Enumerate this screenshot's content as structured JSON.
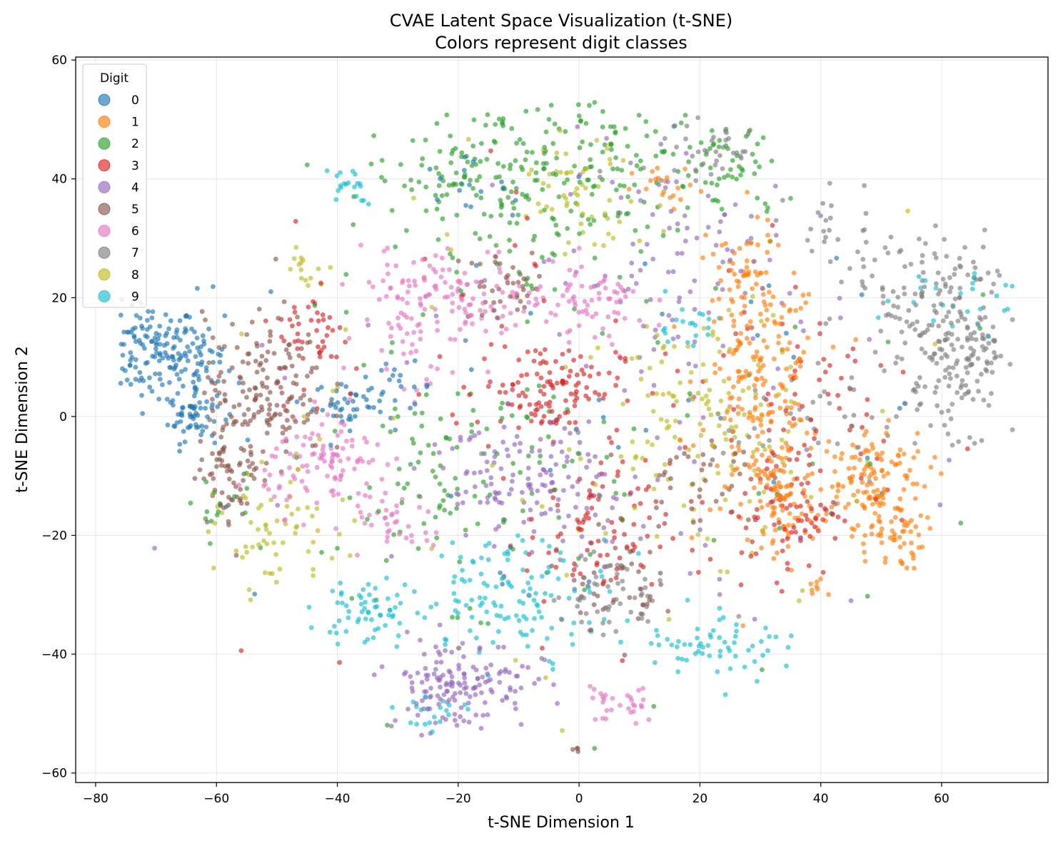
{
  "chart_data": {
    "type": "scatter",
    "title": "CVAE Latent Space Visualization (t-SNE)",
    "subtitle": "Colors represent digit classes",
    "xlabel": "t-SNE Dimension 1",
    "ylabel": "t-SNE Dimension 2",
    "xlim": [
      -83.3,
      77.6
    ],
    "ylim": [
      -61.6,
      60.5
    ],
    "xticks": [
      -80,
      -60,
      -40,
      -20,
      0,
      20,
      40,
      60
    ],
    "yticks": [
      -60,
      -40,
      -20,
      0,
      20,
      40,
      60
    ],
    "xtick_labels": [
      "−80",
      "−60",
      "−40",
      "−20",
      "0",
      "20",
      "40",
      "60"
    ],
    "ytick_labels": [
      "−60",
      "−40",
      "−20",
      "0",
      "20",
      "40",
      "60"
    ],
    "grid": true,
    "legend": {
      "title": "Digit",
      "placement": "top-left",
      "entries": [
        "0",
        "1",
        "2",
        "3",
        "4",
        "5",
        "6",
        "7",
        "8",
        "9"
      ]
    },
    "series": [
      {
        "name": "0",
        "color": "#1f77b4",
        "clusters": [
          {
            "x": -71,
            "y": 11,
            "sx": 4,
            "sy": 4,
            "n": 120
          },
          {
            "x": -63,
            "y": 8,
            "sx": 3,
            "sy": 6,
            "n": 70
          },
          {
            "x": -64,
            "y": 0,
            "sx": 2,
            "sy": 2,
            "n": 40
          },
          {
            "x": -38,
            "y": 2,
            "sx": 3,
            "sy": 2,
            "n": 40
          },
          {
            "x": -30,
            "y": 5,
            "sx": 3,
            "sy": 2,
            "n": 20
          },
          {
            "x": -20,
            "y": 39,
            "sx": 4,
            "sy": 2,
            "n": 15
          },
          {
            "x": 5,
            "y": 0,
            "sx": 40,
            "sy": 25,
            "n": 40
          }
        ]
      },
      {
        "name": "1",
        "color": "#ff7f0e",
        "clusters": [
          {
            "x": 30,
            "y": 5,
            "sx": 5,
            "sy": 10,
            "n": 200
          },
          {
            "x": 33,
            "y": -15,
            "sx": 3,
            "sy": 6,
            "n": 80
          },
          {
            "x": 48,
            "y": -10,
            "sx": 5,
            "sy": 4,
            "n": 120
          },
          {
            "x": 51,
            "y": -20,
            "sx": 3,
            "sy": 3,
            "n": 60
          },
          {
            "x": 27,
            "y": 25,
            "sx": 3,
            "sy": 4,
            "n": 40
          },
          {
            "x": 15,
            "y": 38,
            "sx": 3,
            "sy": 2,
            "n": 20
          },
          {
            "x": 39,
            "y": -29,
            "sx": 1,
            "sy": 1,
            "n": 8
          }
        ]
      },
      {
        "name": "2",
        "color": "#2ca02c",
        "clusters": [
          {
            "x": -15,
            "y": 40,
            "sx": 10,
            "sy": 6,
            "n": 150
          },
          {
            "x": 5,
            "y": 42,
            "sx": 10,
            "sy": 7,
            "n": 100
          },
          {
            "x": -20,
            "y": -10,
            "sx": 10,
            "sy": 10,
            "n": 100
          },
          {
            "x": 25,
            "y": 42,
            "sx": 6,
            "sy": 5,
            "n": 50
          },
          {
            "x": -60,
            "y": -15,
            "sx": 3,
            "sy": 3,
            "n": 15
          },
          {
            "x": 0,
            "y": 0,
            "sx": 35,
            "sy": 25,
            "n": 60
          }
        ]
      },
      {
        "name": "3",
        "color": "#d62728",
        "clusters": [
          {
            "x": -5,
            "y": 5,
            "sx": 6,
            "sy": 4,
            "n": 120
          },
          {
            "x": 3,
            "y": -20,
            "sx": 6,
            "sy": 6,
            "n": 80
          },
          {
            "x": 35,
            "y": -15,
            "sx": 4,
            "sy": 6,
            "n": 80
          },
          {
            "x": -44,
            "y": 14,
            "sx": 3,
            "sy": 4,
            "n": 40
          },
          {
            "x": 40,
            "y": 5,
            "sx": 8,
            "sy": 10,
            "n": 50
          },
          {
            "x": 0,
            "y": 0,
            "sx": 30,
            "sy": 25,
            "n": 50
          }
        ]
      },
      {
        "name": "4",
        "color": "#9467bd",
        "clusters": [
          {
            "x": -20,
            "y": -45,
            "sx": 6,
            "sy": 4,
            "n": 150
          },
          {
            "x": -2,
            "y": -12,
            "sx": 6,
            "sy": 6,
            "n": 80
          },
          {
            "x": -15,
            "y": -10,
            "sx": 5,
            "sy": 4,
            "n": 60
          },
          {
            "x": 15,
            "y": 25,
            "sx": 10,
            "sy": 12,
            "n": 100
          },
          {
            "x": 0,
            "y": 0,
            "sx": 35,
            "sy": 25,
            "n": 40
          }
        ]
      },
      {
        "name": "5",
        "color": "#8c564b",
        "clusters": [
          {
            "x": -52,
            "y": 5,
            "sx": 5,
            "sy": 6,
            "n": 150
          },
          {
            "x": -57,
            "y": -8,
            "sx": 3,
            "sy": 5,
            "n": 80
          },
          {
            "x": -12,
            "y": 22,
            "sx": 4,
            "sy": 3,
            "n": 40
          },
          {
            "x": 5,
            "y": -28,
            "sx": 4,
            "sy": 4,
            "n": 40
          },
          {
            "x": 20,
            "y": -10,
            "sx": 5,
            "sy": 4,
            "n": 40
          },
          {
            "x": -1,
            "y": -56,
            "sx": 0.5,
            "sy": 0.3,
            "n": 4
          }
        ]
      },
      {
        "name": "6",
        "color": "#e377c2",
        "clusters": [
          {
            "x": -20,
            "y": 20,
            "sx": 8,
            "sy": 4,
            "n": 120
          },
          {
            "x": -42,
            "y": -8,
            "sx": 5,
            "sy": 4,
            "n": 100
          },
          {
            "x": -30,
            "y": -18,
            "sx": 4,
            "sy": 3,
            "n": 40
          },
          {
            "x": 2,
            "y": 18,
            "sx": 5,
            "sy": 4,
            "n": 60
          },
          {
            "x": 7,
            "y": -48,
            "sx": 3,
            "sy": 2,
            "n": 30
          },
          {
            "x": -28,
            "y": 15,
            "sx": 4,
            "sy": 6,
            "n": 40
          }
        ]
      },
      {
        "name": "7",
        "color": "#7f7f7f",
        "clusters": [
          {
            "x": 63,
            "y": 12,
            "sx": 5,
            "sy": 7,
            "n": 180
          },
          {
            "x": 55,
            "y": 20,
            "sx": 5,
            "sy": 6,
            "n": 60
          },
          {
            "x": 5,
            "y": -30,
            "sx": 5,
            "sy": 4,
            "n": 60
          },
          {
            "x": 45,
            "y": 30,
            "sx": 5,
            "sy": 4,
            "n": 30
          },
          {
            "x": 20,
            "y": 45,
            "sx": 6,
            "sy": 4,
            "n": 40
          },
          {
            "x": 40,
            "y": 0,
            "sx": 8,
            "sy": 6,
            "n": 40
          }
        ]
      },
      {
        "name": "8",
        "color": "#bcbd22",
        "clusters": [
          {
            "x": 20,
            "y": -2,
            "sx": 8,
            "sy": 10,
            "n": 120
          },
          {
            "x": -50,
            "y": -20,
            "sx": 5,
            "sy": 5,
            "n": 60
          },
          {
            "x": 0,
            "y": 38,
            "sx": 5,
            "sy": 4,
            "n": 50
          },
          {
            "x": -45,
            "y": 25,
            "sx": 2,
            "sy": 2,
            "n": 15
          },
          {
            "x": 0,
            "y": 0,
            "sx": 35,
            "sy": 25,
            "n": 50
          }
        ]
      },
      {
        "name": "9",
        "color": "#17becf",
        "clusters": [
          {
            "x": -10,
            "y": -30,
            "sx": 8,
            "sy": 5,
            "n": 120
          },
          {
            "x": 23,
            "y": -38,
            "sx": 6,
            "sy": 3,
            "n": 60
          },
          {
            "x": -35,
            "y": -33,
            "sx": 4,
            "sy": 3,
            "n": 60
          },
          {
            "x": -38,
            "y": 39,
            "sx": 2,
            "sy": 1.5,
            "n": 20
          },
          {
            "x": 62,
            "y": 20,
            "sx": 6,
            "sy": 3,
            "n": 25
          },
          {
            "x": 18,
            "y": 15,
            "sx": 3,
            "sy": 2,
            "n": 20
          },
          {
            "x": -25,
            "y": -50,
            "sx": 3,
            "sy": 2,
            "n": 20
          }
        ]
      }
    ]
  }
}
